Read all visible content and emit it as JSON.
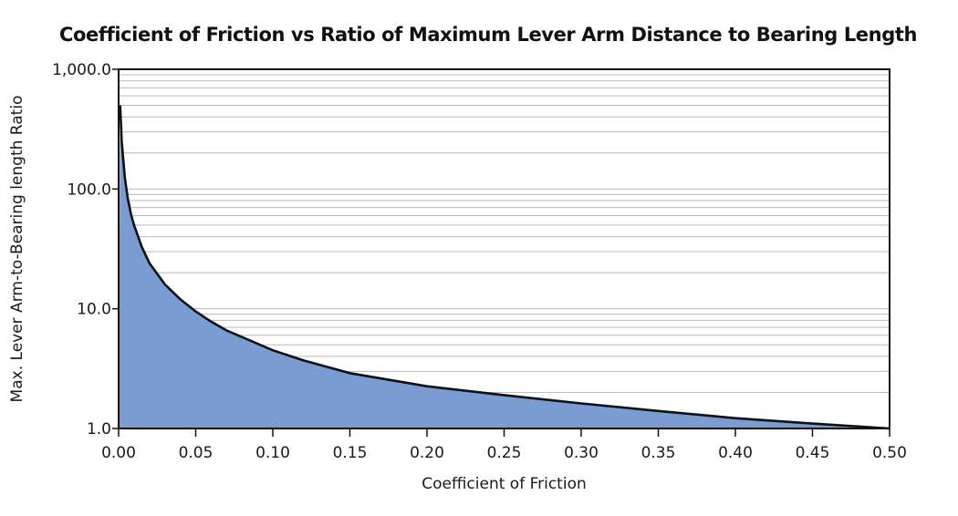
{
  "chart_data": {
    "type": "area",
    "title": "Coefficient of Friction vs Ratio of Maximum Lever Arm Distance to Bearing Length",
    "xlabel": "Coefficient of Friction",
    "ylabel": "Max. Lever Arm-to-Bearing length Ratio",
    "x_ticks": [
      "0.00",
      "0.05",
      "0.10",
      "0.15",
      "0.20",
      "0.25",
      "0.30",
      "0.35",
      "0.40",
      "0.45",
      "0.50"
    ],
    "y_ticks": [
      "1.0",
      "10.0",
      "100.0",
      "1,000.0"
    ],
    "xlim": [
      0,
      0.5
    ],
    "ylim": [
      1,
      1000
    ],
    "y_scale": "log",
    "grid": "horizontal minor log gridlines",
    "fill_color": "#7a9cd0",
    "line_color": "#111111",
    "series": [
      {
        "x": [
          0.001,
          0.002,
          0.004,
          0.006,
          0.008,
          0.01,
          0.015,
          0.02,
          0.03,
          0.04,
          0.05,
          0.06,
          0.07,
          0.08,
          0.1,
          0.12,
          0.15,
          0.2,
          0.25,
          0.3,
          0.35,
          0.4,
          0.45,
          0.5
        ],
        "y": [
          500,
          250,
          125,
          83,
          62,
          50,
          33,
          24,
          16,
          12,
          9.5,
          7.8,
          6.6,
          5.8,
          4.5,
          3.7,
          2.9,
          2.25,
          1.9,
          1.62,
          1.4,
          1.22,
          1.1,
          1.0
        ]
      }
    ]
  }
}
